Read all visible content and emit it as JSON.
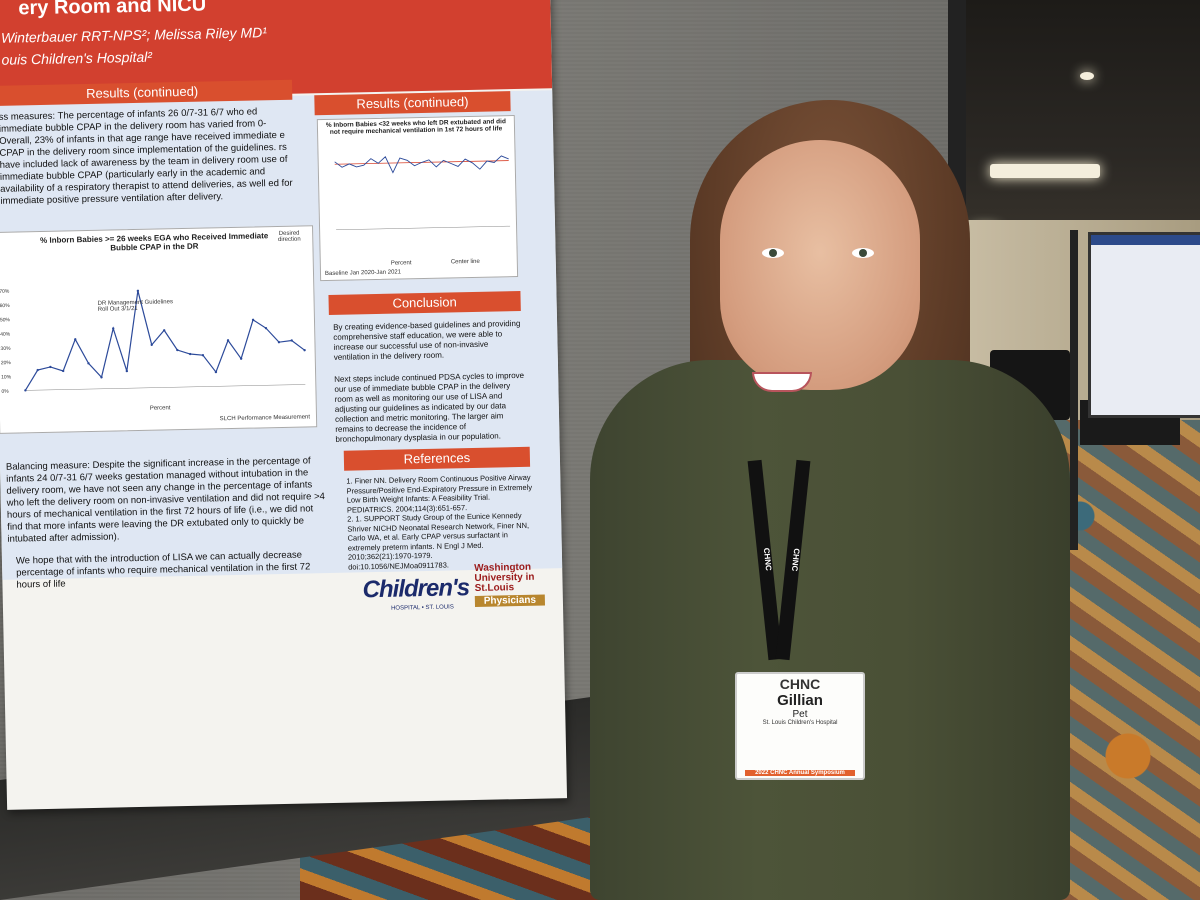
{
  "poster": {
    "title_fragment": "ery Room and NICU",
    "authors": "Winterbauer RRT-NPS²; Melissa Riley MD¹",
    "affiliation": "ouis Children's Hospital²",
    "results_heading_left": "Results (continued)",
    "results_text": "ss measures: The percentage of infants 26 0/7-31 6/7 who ed immediate bubble CPAP in the delivery room has varied from 0- Overall, 23% of infants in that age range have received immediate e CPAP in the delivery room since implementation of the guidelines. rs have included lack of awareness by the team in delivery room use of immediate bubble CPAP (particularly early in the academic and availability of a respiratory therapist to attend deliveries, as well ed for immediate positive pressure ventilation after delivery.",
    "chart_left_title": "% Inborn Babies >= 26 weeks EGA who Received Immediate Bubble CPAP in the DR",
    "chart_left_annotation": "DR Management Guidelines Roll Out 3/1/21",
    "chart_left_legend": "Percent",
    "chart_left_footer": "SLCH Performance Measurement",
    "chart_left_direction": "Desired direction",
    "balancing_text": "Balancing measure: Despite the significant increase in the percentage of infants 24 0/7-31 6/7 weeks gestation managed without intubation in the delivery room, we have not seen any change in the percentage of infants who left the delivery room on non-invasive ventilation and did not require >4 hours of mechanical ventilation in the first 72 hours of life (i.e., we did not find that more infants were leaving the DR extubated only to quickly be intubated after admission).",
    "lisa_text": "We hope that with the introduction of LISA we can actually decrease percentage of infants who require mechanical ventilation in the first 72 hours of life",
    "results_heading_right": "Results (continued)",
    "chart_right_title": "% Inborn Babies <32 weeks who left DR extubated and did not require mechanical ventilation in 1st 72 hours of life",
    "chart_right_legend_1": "Percent",
    "chart_right_legend_2": "Center line",
    "chart_right_baseline": "Baseline Jan 2020-Jan 2021",
    "conclusion_heading": "Conclusion",
    "conclusion_p1": "By creating evidence-based guidelines and providing comprehensive staff education, we were able to increase our successful use of non-invasive ventilation in the delivery room.",
    "conclusion_p2": "Next steps include continued PDSA cycles to improve our use of immediate bubble CPAP in the delivery room as well as monitoring our use of LISA and adjusting our guidelines as indicated by our data collection and metric monitoring. The larger aim remains to decrease the incidence of bronchopulmonary dysplasia in our population.",
    "references_heading": "References",
    "ref1": "1. Finer NN. Delivery Room Continuous Positive Airway Pressure/Positive End-Expiratory Pressure in Extremely Low Birth Weight Infants: A Feasibility Trial. PEDIATRICS. 2004;114(3):651-657.",
    "ref2": "2. 1. SUPPORT Study Group of the Eunice Kennedy Shriver NICHD Neonatal Research Network, Finer NN, Carlo WA, et al. Early CPAP versus surfactant in extremely preterm infants. N Engl J Med. 2010;362(21):1970-1979. doi:10.1056/NEJMoa0911783.",
    "logo_childrens": "Children's",
    "logo_childrens_sub": "HOSPITAL • ST. LOUIS",
    "logo_wash": "Washington University in St.Louis",
    "logo_physicians": "Physicians"
  },
  "left_chart": {
    "y_ticks": [
      "0%",
      "10%",
      "20%",
      "30%",
      "40%",
      "50%",
      "60%",
      "70%"
    ],
    "values": [
      0,
      14,
      16,
      13,
      35,
      18,
      8,
      42,
      12,
      68,
      30,
      40,
      26,
      23,
      22,
      10,
      32,
      19,
      46,
      40,
      30,
      31,
      24
    ]
  },
  "right_chart": {
    "values": [
      85,
      78,
      82,
      78,
      80,
      88,
      82,
      90,
      70,
      88,
      85,
      78,
      82,
      85,
      76,
      84,
      80,
      76,
      85,
      80,
      72,
      82,
      80,
      88,
      84
    ]
  },
  "badge": {
    "org": "CHNC",
    "first_name": "Gillian",
    "last_name": "Pet",
    "hospital": "St. Louis Children's Hospital",
    "event": "2022 CHNC Annual Symposium"
  },
  "lanyard_text": "CHNC",
  "colors": {
    "poster_red": "#d2402f",
    "panel_blue": "#dfe7f3",
    "sweater_green": "#4d5439"
  }
}
